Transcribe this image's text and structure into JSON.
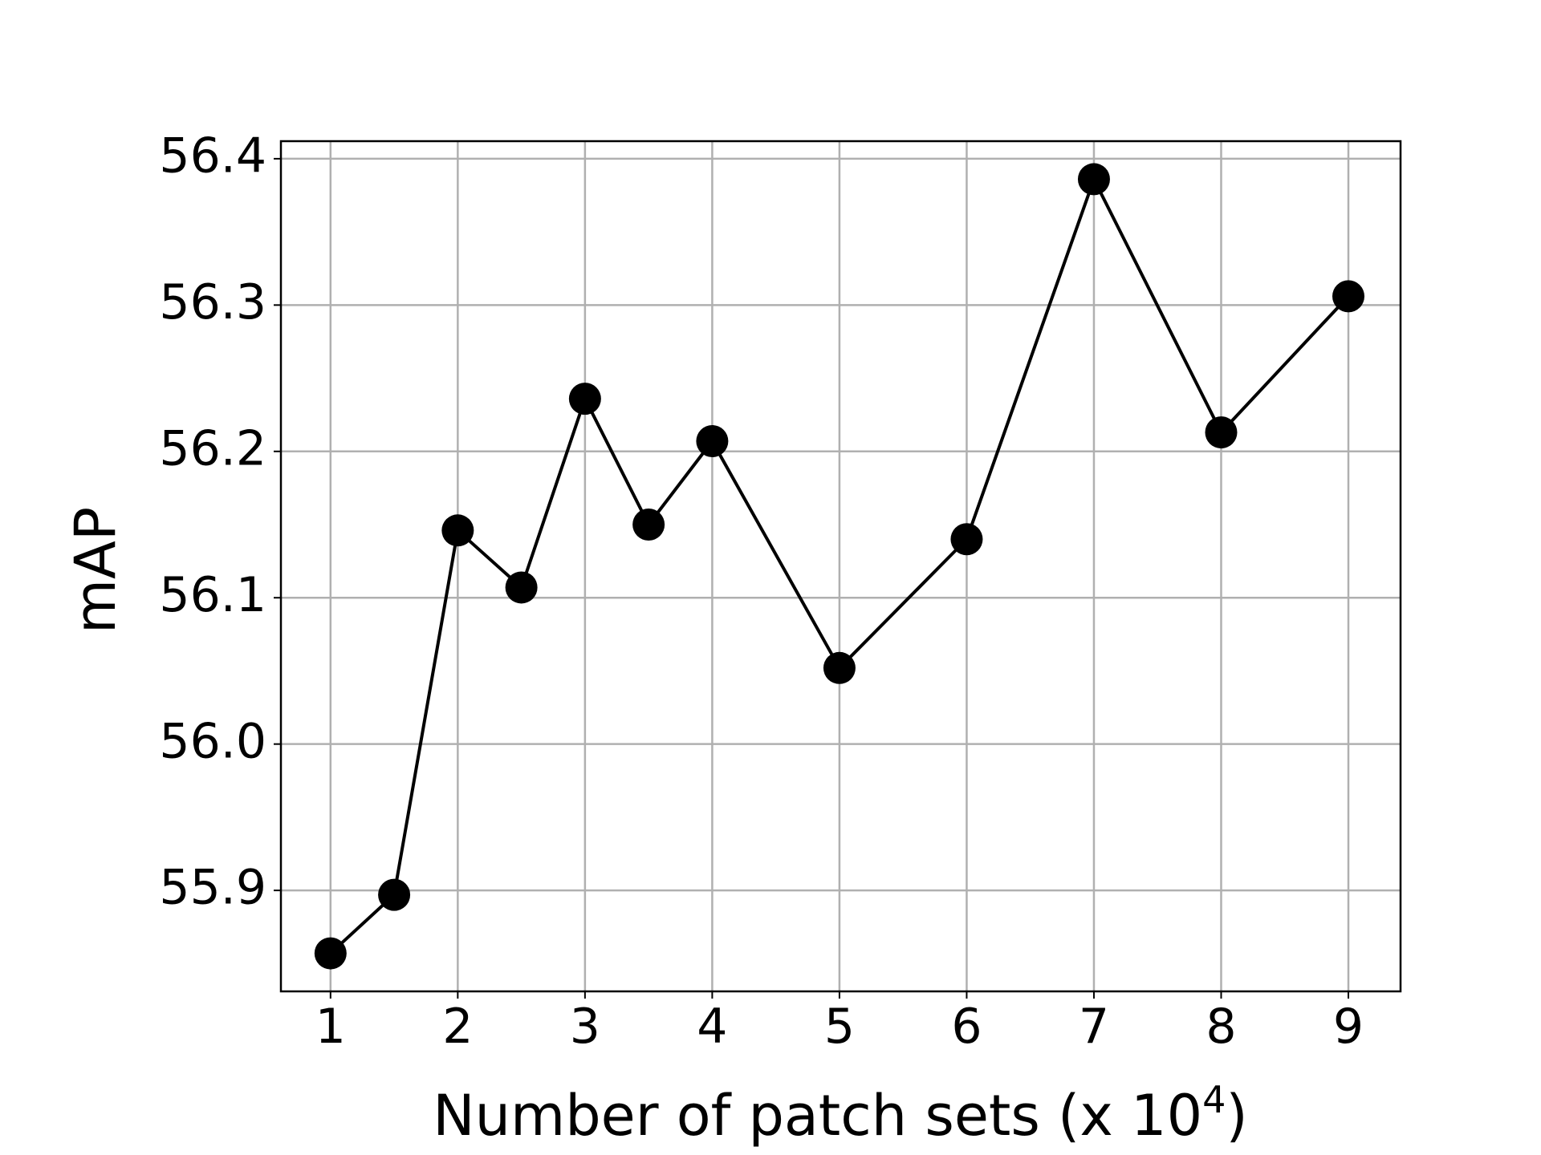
{
  "chart_data": {
    "type": "line",
    "xlabel": [
      "Number of patch sets (x 10",
      "4",
      ")"
    ],
    "ylabel": "mAP",
    "x": [
      1,
      1.5,
      2,
      2.5,
      3,
      3.5,
      4,
      5,
      6,
      7,
      8,
      9
    ],
    "series": [
      {
        "color": "#000000",
        "values": [
          55.857,
          55.897,
          56.146,
          56.107,
          56.236,
          56.15,
          56.207,
          56.052,
          56.14,
          56.386,
          56.213,
          56.306
        ]
      }
    ],
    "xlim": [
      0.61,
      9.41
    ],
    "ylim": [
      55.831,
      56.412
    ],
    "xticks": [
      1,
      2,
      3,
      4,
      5,
      6,
      7,
      8,
      9
    ],
    "yticks": [
      55.9,
      {
        "value": 56,
        "label": "56.0"
      },
      56.1,
      56.2,
      56.3,
      56.4
    ],
    "grid": true,
    "marker": "circle"
  }
}
